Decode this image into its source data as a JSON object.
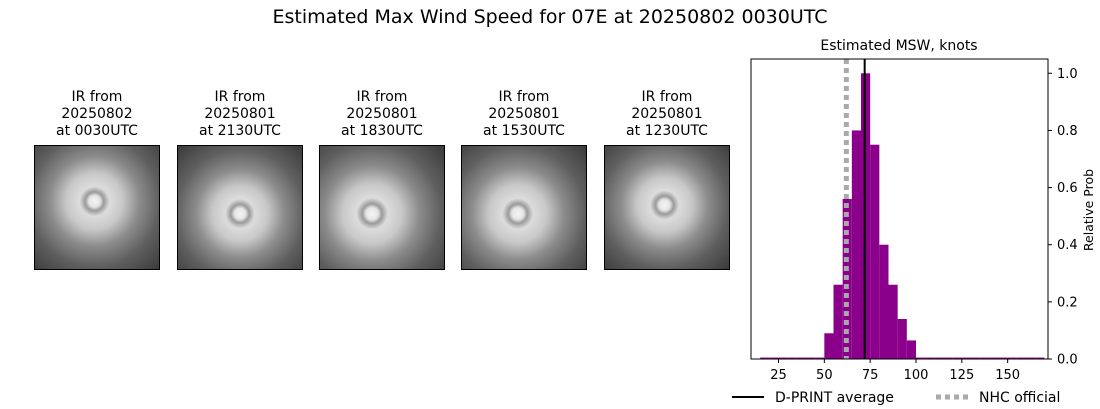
{
  "figure": {
    "title": "Estimated Max Wind Speed for 07E at 20250802 0030UTC"
  },
  "ir_panels": [
    {
      "title": "IR from\n20250802\nat 0030UTC",
      "eye": [
        0.48,
        0.45
      ]
    },
    {
      "title": "IR from\n20250801\nat 2130UTC",
      "eye": [
        0.5,
        0.55
      ]
    },
    {
      "title": "IR from\n20250801\nat 1830UTC",
      "eye": [
        0.42,
        0.55
      ]
    },
    {
      "title": "IR from\n20250801\nat 1530UTC",
      "eye": [
        0.45,
        0.55
      ]
    },
    {
      "title": "IR from\n20250801\nat 1230UTC",
      "eye": [
        0.48,
        0.48
      ]
    }
  ],
  "chart_data": {
    "type": "bar",
    "title": "Estimated MSW, knots",
    "xlabel": "",
    "ylabel": "Relative Prob",
    "xlim": [
      10,
      172
    ],
    "ylim": [
      0,
      1.05
    ],
    "xticks": [
      25,
      50,
      75,
      100,
      125,
      150
    ],
    "yticks": [
      0.0,
      0.2,
      0.4,
      0.6,
      0.8,
      1.0
    ],
    "bar_color": "#8b008b",
    "bin_width": 5,
    "bins": [
      {
        "start": 15,
        "value": 0.005
      },
      {
        "start": 20,
        "value": 0.005
      },
      {
        "start": 25,
        "value": 0.005
      },
      {
        "start": 30,
        "value": 0.005
      },
      {
        "start": 35,
        "value": 0.005
      },
      {
        "start": 40,
        "value": 0.005
      },
      {
        "start": 45,
        "value": 0.005
      },
      {
        "start": 50,
        "value": 0.09
      },
      {
        "start": 55,
        "value": 0.26
      },
      {
        "start": 60,
        "value": 0.56
      },
      {
        "start": 65,
        "value": 0.8
      },
      {
        "start": 70,
        "value": 1.0
      },
      {
        "start": 75,
        "value": 0.75
      },
      {
        "start": 80,
        "value": 0.4
      },
      {
        "start": 85,
        "value": 0.26
      },
      {
        "start": 90,
        "value": 0.14
      },
      {
        "start": 95,
        "value": 0.065
      },
      {
        "start": 100,
        "value": 0.005
      },
      {
        "start": 105,
        "value": 0.005
      },
      {
        "start": 110,
        "value": 0.005
      },
      {
        "start": 115,
        "value": 0.005
      },
      {
        "start": 120,
        "value": 0.005
      },
      {
        "start": 125,
        "value": 0.005
      },
      {
        "start": 130,
        "value": 0.005
      },
      {
        "start": 135,
        "value": 0.005
      },
      {
        "start": 140,
        "value": 0.005
      },
      {
        "start": 145,
        "value": 0.005
      },
      {
        "start": 150,
        "value": 0.005
      },
      {
        "start": 155,
        "value": 0.005
      },
      {
        "start": 160,
        "value": 0.005
      },
      {
        "start": 165,
        "value": 0.005
      }
    ],
    "dprint_average": 72,
    "nhc_official": 62,
    "legend": {
      "placement": "bottom",
      "dprint_label": "D-PRINT average",
      "nhc_label": "NHC official"
    },
    "colors": {
      "dprint": "#000000",
      "nhc": "#aaaaaa"
    }
  }
}
